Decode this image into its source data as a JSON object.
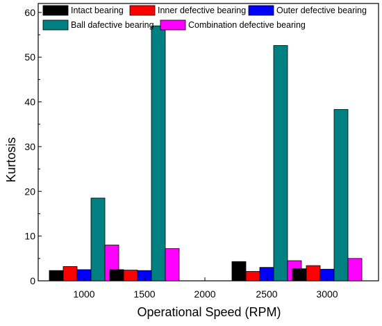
{
  "chart_data": {
    "type": "bar",
    "xlabel": "Operational Speed (RPM)",
    "ylabel": "Kurtosis",
    "categories": [
      "1000",
      "1500",
      "2000",
      "2500",
      "3000"
    ],
    "ylim": [
      0,
      62
    ],
    "yticks": [
      0,
      10,
      20,
      30,
      40,
      50,
      60
    ],
    "legend_position": "top",
    "grid": false,
    "series": [
      {
        "name": "Intact bearing",
        "color": "#000000",
        "values": [
          2.3,
          2.5,
          0,
          4.3,
          2.7
        ]
      },
      {
        "name": "Inner defective bearing",
        "color": "#ff0000",
        "values": [
          3.2,
          2.4,
          0,
          2.1,
          3.4
        ]
      },
      {
        "name": "Outer defective bearing",
        "color": "#0000ff",
        "values": [
          2.5,
          2.3,
          0,
          3.0,
          2.6
        ]
      },
      {
        "name": "Ball dafective bearing",
        "color": "#008080",
        "values": [
          18.5,
          57.0,
          0,
          52.6,
          38.3
        ]
      },
      {
        "name": "Combination defective bearing",
        "color": "#ff00ff",
        "values": [
          8.0,
          7.2,
          0,
          4.5,
          5.0
        ]
      }
    ]
  }
}
